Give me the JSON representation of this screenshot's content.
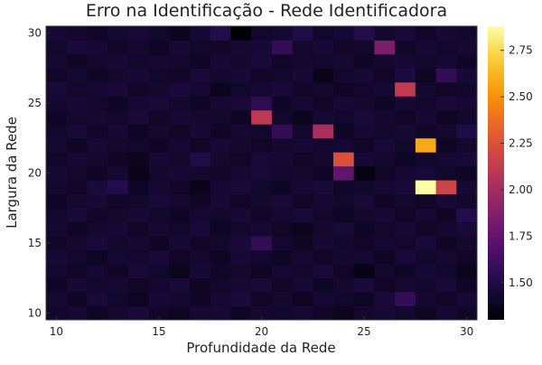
{
  "chart_data": {
    "type": "heatmap",
    "title": "Erro na Identificação - Rede Identificadora",
    "xlabel": "Profundidade da Rede",
    "ylabel": "Largura da Rede",
    "x": [
      10,
      11,
      12,
      13,
      14,
      15,
      16,
      17,
      18,
      19,
      20,
      21,
      22,
      23,
      24,
      25,
      26,
      27,
      28,
      29,
      30
    ],
    "y": [
      10,
      11,
      12,
      13,
      14,
      15,
      16,
      17,
      18,
      19,
      20,
      21,
      22,
      23,
      24,
      25,
      26,
      27,
      28,
      29,
      30
    ],
    "xlim": [
      9.5,
      30.5
    ],
    "ylim": [
      9.5,
      30.5
    ],
    "xticks": [
      10,
      15,
      20,
      25,
      30
    ],
    "yticks": [
      10,
      15,
      20,
      25,
      30
    ],
    "color_range": [
      1.3,
      2.88
    ],
    "colorbar_ticks": [
      1.5,
      1.75,
      2.0,
      2.25,
      2.5,
      2.75
    ],
    "colorbar_tick_labels": [
      "1.50",
      "1.75",
      "2.00",
      "2.25",
      "2.50",
      "2.75"
    ],
    "colormap": "inferno",
    "grid": false,
    "base_value": 1.42,
    "values": [
      [
        1.42,
        1.44,
        1.4,
        1.43,
        1.46,
        1.41,
        1.39,
        1.44,
        1.45,
        1.4,
        1.43,
        1.42,
        1.44,
        1.41,
        1.38,
        1.43,
        1.45,
        1.42,
        1.4,
        1.44,
        1.41
      ],
      [
        1.44,
        1.4,
        1.46,
        1.42,
        1.39,
        1.45,
        1.43,
        1.4,
        1.44,
        1.47,
        1.41,
        1.43,
        1.39,
        1.44,
        1.42,
        1.4,
        1.46,
        1.58,
        1.43,
        1.41,
        1.45
      ],
      [
        1.4,
        1.45,
        1.42,
        1.44,
        1.41,
        1.43,
        1.46,
        1.4,
        1.42,
        1.44,
        1.46,
        1.41,
        1.45,
        1.4,
        1.43,
        1.47,
        1.41,
        1.44,
        1.42,
        1.46,
        1.4
      ],
      [
        1.43,
        1.41,
        1.44,
        1.4,
        1.46,
        1.42,
        1.38,
        1.45,
        1.41,
        1.43,
        1.4,
        1.44,
        1.42,
        1.46,
        1.41,
        1.35,
        1.43,
        1.4,
        1.45,
        1.42,
        1.38
      ],
      [
        1.45,
        1.42,
        1.4,
        1.44,
        1.42,
        1.46,
        1.41,
        1.43,
        1.4,
        1.45,
        1.42,
        1.4,
        1.44,
        1.41,
        1.43,
        1.44,
        1.4,
        1.46,
        1.42,
        1.44,
        1.41
      ],
      [
        1.41,
        1.43,
        1.46,
        1.42,
        1.44,
        1.4,
        1.45,
        1.41,
        1.43,
        1.47,
        1.58,
        1.43,
        1.4,
        1.45,
        1.42,
        1.41,
        1.44,
        1.42,
        1.46,
        1.4,
        1.43
      ],
      [
        1.44,
        1.4,
        1.43,
        1.45,
        1.41,
        1.44,
        1.42,
        1.46,
        1.4,
        1.42,
        1.44,
        1.41,
        1.38,
        1.43,
        1.46,
        1.4,
        1.42,
        1.45,
        1.41,
        1.43,
        1.46
      ],
      [
        1.42,
        1.46,
        1.41,
        1.43,
        1.45,
        1.42,
        1.4,
        1.44,
        1.42,
        1.45,
        1.41,
        1.44,
        1.46,
        1.42,
        1.4,
        1.43,
        1.45,
        1.41,
        1.44,
        1.4,
        1.52
      ],
      [
        1.4,
        1.43,
        1.45,
        1.41,
        1.42,
        1.46,
        1.43,
        1.4,
        1.45,
        1.41,
        1.43,
        1.46,
        1.41,
        1.44,
        1.42,
        1.46,
        1.4,
        1.43,
        1.41,
        1.45,
        1.42
      ],
      [
        1.43,
        1.41,
        1.47,
        1.52,
        1.4,
        1.44,
        1.41,
        1.36,
        1.44,
        1.47,
        1.42,
        1.4,
        1.44,
        1.46,
        1.41,
        1.42,
        1.44,
        1.46,
        2.88,
        2.18,
        1.44
      ],
      [
        1.45,
        1.42,
        1.4,
        1.44,
        1.36,
        1.42,
        1.45,
        1.43,
        1.41,
        1.44,
        1.46,
        1.42,
        1.43,
        1.4,
        1.75,
        1.34,
        1.41,
        1.44,
        1.46,
        1.42,
        1.4
      ],
      [
        1.41,
        1.44,
        1.43,
        1.4,
        1.38,
        1.45,
        1.42,
        1.5,
        1.43,
        1.41,
        1.46,
        1.44,
        1.41,
        1.43,
        2.25,
        1.45,
        1.43,
        1.4,
        1.42,
        1.44,
        1.46
      ],
      [
        1.44,
        1.4,
        1.45,
        1.43,
        1.42,
        1.4,
        1.44,
        1.41,
        1.45,
        1.43,
        1.41,
        1.43,
        1.45,
        1.42,
        1.44,
        1.41,
        1.46,
        1.42,
        2.58,
        1.4,
        1.43
      ],
      [
        1.42,
        1.46,
        1.41,
        1.45,
        1.4,
        1.43,
        1.41,
        1.45,
        1.4,
        1.44,
        1.42,
        1.58,
        1.42,
        2.02,
        1.4,
        1.44,
        1.42,
        1.45,
        1.41,
        1.43,
        1.5
      ],
      [
        1.4,
        1.43,
        1.44,
        1.42,
        1.46,
        1.41,
        1.45,
        1.43,
        1.42,
        1.4,
        2.1,
        1.42,
        1.38,
        1.44,
        1.42,
        1.46,
        1.43,
        1.41,
        1.44,
        1.4,
        1.42
      ],
      [
        1.43,
        1.45,
        1.42,
        1.4,
        1.44,
        1.46,
        1.42,
        1.4,
        1.44,
        1.46,
        1.55,
        1.4,
        1.44,
        1.41,
        1.45,
        1.43,
        1.4,
        1.45,
        1.42,
        1.46,
        1.44
      ],
      [
        1.46,
        1.42,
        1.44,
        1.46,
        1.41,
        1.43,
        1.47,
        1.44,
        1.38,
        1.42,
        1.44,
        1.46,
        1.41,
        1.43,
        1.4,
        1.42,
        1.44,
        2.12,
        1.43,
        1.41,
        1.42
      ],
      [
        1.41,
        1.44,
        1.4,
        1.43,
        1.45,
        1.42,
        1.41,
        1.46,
        1.43,
        1.45,
        1.41,
        1.42,
        1.45,
        1.36,
        1.43,
        1.45,
        1.41,
        1.48,
        1.4,
        1.58,
        1.45
      ],
      [
        1.44,
        1.4,
        1.43,
        1.45,
        1.42,
        1.44,
        1.43,
        1.4,
        1.45,
        1.43,
        1.46,
        1.41,
        1.43,
        1.42,
        1.44,
        1.4,
        1.43,
        1.45,
        1.42,
        1.44,
        1.4
      ],
      [
        1.42,
        1.47,
        1.44,
        1.41,
        1.43,
        1.4,
        1.45,
        1.42,
        1.41,
        1.44,
        1.45,
        1.58,
        1.43,
        1.45,
        1.41,
        1.43,
        1.85,
        1.41,
        1.45,
        1.42,
        1.44
      ],
      [
        1.45,
        1.43,
        1.41,
        1.44,
        1.46,
        1.42,
        1.38,
        1.44,
        1.52,
        1.3,
        1.42,
        1.44,
        1.5,
        1.42,
        1.45,
        1.52,
        1.43,
        1.46,
        1.41,
        1.45,
        1.43
      ]
    ]
  }
}
